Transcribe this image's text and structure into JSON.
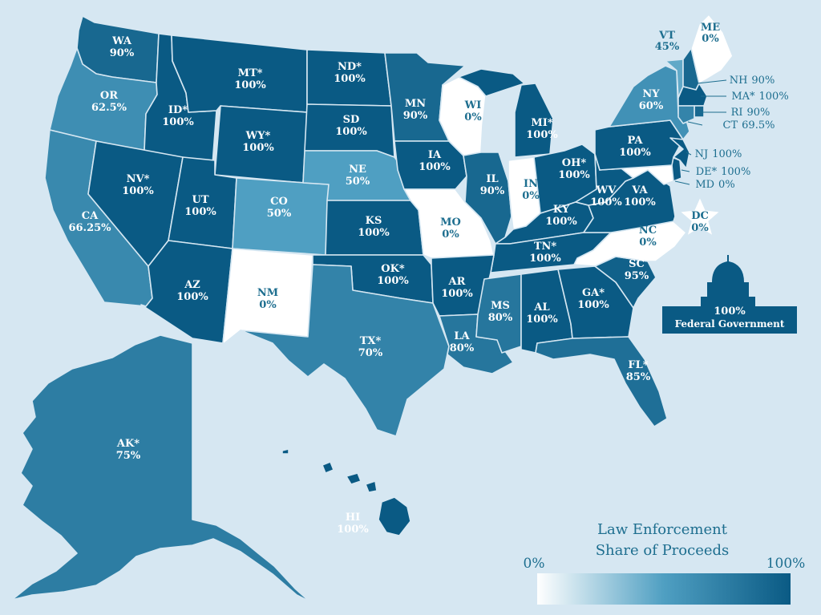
{
  "colors": {
    "background": "#d6e7f2",
    "scale_low": "#ffffff",
    "scale_high": "#0a5a84",
    "label_light": "#ffffff",
    "label_dark": "#1d6e8f"
  },
  "legend": {
    "title_line1": "Law Enforcement",
    "title_line2": "Share of Proceeds",
    "min_label": "0%",
    "max_label": "100%"
  },
  "federal": {
    "value": "100%",
    "label": "Federal Government",
    "share": 100
  },
  "states": [
    {
      "abbr": "WA",
      "value": "90%",
      "share": 90
    },
    {
      "abbr": "OR",
      "value": "62.5%",
      "share": 62.5
    },
    {
      "abbr": "CA",
      "value": "66.25%",
      "share": 66.25
    },
    {
      "abbr": "ID*",
      "value": "100%",
      "share": 100
    },
    {
      "abbr": "NV*",
      "value": "100%",
      "share": 100
    },
    {
      "abbr": "MT*",
      "value": "100%",
      "share": 100
    },
    {
      "abbr": "WY*",
      "value": "100%",
      "share": 100
    },
    {
      "abbr": "UT",
      "value": "100%",
      "share": 100
    },
    {
      "abbr": "AZ",
      "value": "100%",
      "share": 100
    },
    {
      "abbr": "CO",
      "value": "50%",
      "share": 50
    },
    {
      "abbr": "NM",
      "value": "0%",
      "share": 0
    },
    {
      "abbr": "ND*",
      "value": "100%",
      "share": 100
    },
    {
      "abbr": "SD",
      "value": "100%",
      "share": 100
    },
    {
      "abbr": "NE",
      "value": "50%",
      "share": 50
    },
    {
      "abbr": "KS",
      "value": "100%",
      "share": 100
    },
    {
      "abbr": "OK*",
      "value": "100%",
      "share": 100
    },
    {
      "abbr": "TX*",
      "value": "70%",
      "share": 70
    },
    {
      "abbr": "MN",
      "value": "90%",
      "share": 90
    },
    {
      "abbr": "IA",
      "value": "100%",
      "share": 100
    },
    {
      "abbr": "MO",
      "value": "0%",
      "share": 0
    },
    {
      "abbr": "AR",
      "value": "100%",
      "share": 100
    },
    {
      "abbr": "LA",
      "value": "80%",
      "share": 80
    },
    {
      "abbr": "WI",
      "value": "0%",
      "share": 0
    },
    {
      "abbr": "IL",
      "value": "90%",
      "share": 90
    },
    {
      "abbr": "MI*",
      "value": "100%",
      "share": 100
    },
    {
      "abbr": "IN",
      "value": "0%",
      "share": 0
    },
    {
      "abbr": "OH*",
      "value": "100%",
      "share": 100
    },
    {
      "abbr": "KY",
      "value": "100%",
      "share": 100
    },
    {
      "abbr": "TN*",
      "value": "100%",
      "share": 100
    },
    {
      "abbr": "MS",
      "value": "80%",
      "share": 80
    },
    {
      "abbr": "AL",
      "value": "100%",
      "share": 100
    },
    {
      "abbr": "GA*",
      "value": "100%",
      "share": 100
    },
    {
      "abbr": "FL*",
      "value": "85%",
      "share": 85
    },
    {
      "abbr": "SC",
      "value": "95%",
      "share": 95
    },
    {
      "abbr": "NC",
      "value": "0%",
      "share": 0
    },
    {
      "abbr": "VA",
      "value": "100%",
      "share": 100
    },
    {
      "abbr": "WV",
      "value": "100%",
      "share": 100
    },
    {
      "abbr": "PA",
      "value": "100%",
      "share": 100
    },
    {
      "abbr": "NY",
      "value": "60%",
      "share": 60
    },
    {
      "abbr": "VT",
      "value": "45%",
      "share": 45
    },
    {
      "abbr": "ME",
      "value": "0%",
      "share": 0
    },
    {
      "abbr": "NH",
      "value": "90%",
      "share": 90
    },
    {
      "abbr": "MA*",
      "value": "100%",
      "share": 100
    },
    {
      "abbr": "RI",
      "value": "90%",
      "share": 90
    },
    {
      "abbr": "CT",
      "value": "69.5%",
      "share": 69.5
    },
    {
      "abbr": "NJ",
      "value": "100%",
      "share": 100
    },
    {
      "abbr": "DE*",
      "value": "100%",
      "share": 100
    },
    {
      "abbr": "MD",
      "value": "0%",
      "share": 0
    },
    {
      "abbr": "DC",
      "value": "0%",
      "share": 0
    },
    {
      "abbr": "AK*",
      "value": "75%",
      "share": 75
    },
    {
      "abbr": "HI",
      "value": "100%",
      "share": 100
    }
  ]
}
